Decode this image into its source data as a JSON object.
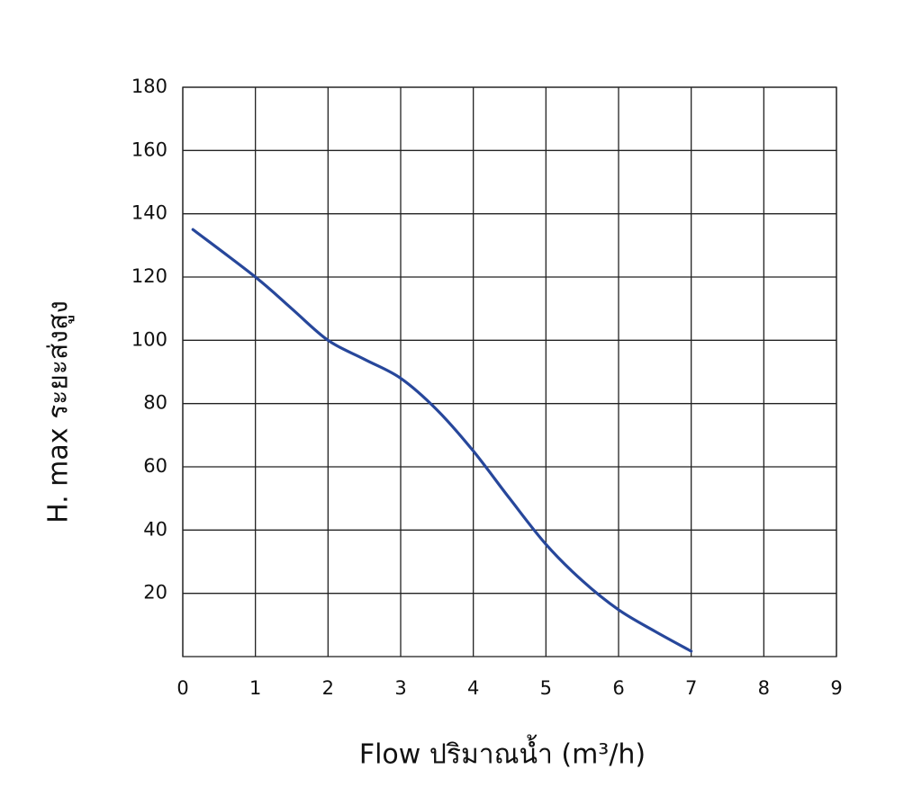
{
  "chart_data": {
    "type": "line",
    "x_label": "Flow  ปริมาณน้ำ (m³/h)",
    "y_label": "H. max  ระยะส่งสูง",
    "x": [
      0.14,
      1,
      1.5,
      2,
      2.5,
      3,
      3.5,
      4,
      4.5,
      5,
      5.5,
      6,
      6.5,
      7
    ],
    "values": [
      135,
      120,
      110,
      100,
      94,
      88,
      78,
      65,
      50,
      35.5,
      24,
      14.8,
      8,
      1.7
    ],
    "color": "#27479b",
    "xlim": [
      0,
      9
    ],
    "xticks": [
      0,
      1,
      2,
      3,
      4,
      5,
      6,
      7,
      8,
      9
    ],
    "ylim": [
      0,
      180
    ],
    "yticks": [
      20,
      40,
      60,
      80,
      100,
      120,
      140,
      160,
      180
    ],
    "grid": true
  }
}
